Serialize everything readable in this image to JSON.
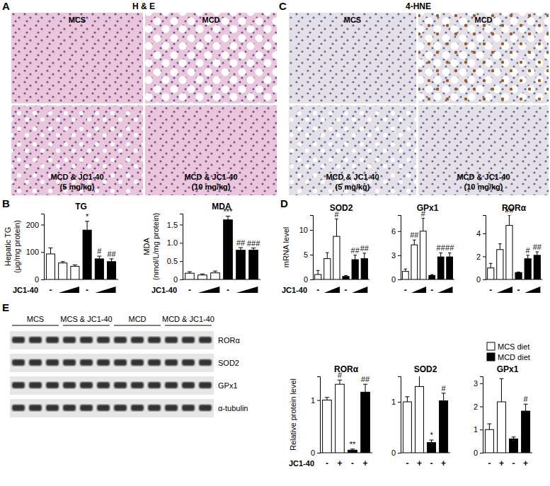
{
  "chart_data": [
    {
      "type": "bar",
      "title": "TG",
      "y_label": [
        "Hepatic TG",
        "(μg/mg protein)"
      ],
      "x_label": "JC1-40",
      "categories": [
        "-",
        null,
        null,
        "-",
        null,
        null
      ],
      "values": [
        93,
        60,
        48,
        180,
        75,
        65
      ],
      "errors": [
        22,
        5,
        5,
        32,
        10,
        10
      ],
      "colors": [
        "#ffffff",
        "#ffffff",
        "#ffffff",
        "#000000",
        "#000000",
        "#000000"
      ],
      "ylim": [
        0,
        240
      ],
      "yticks": [
        0,
        100,
        200
      ],
      "annotations": [
        {
          "index": 3,
          "text": "*"
        },
        {
          "index": 4,
          "text": "#"
        },
        {
          "index": 5,
          "text": "##"
        }
      ]
    },
    {
      "type": "bar",
      "title": "MDA",
      "y_label": [
        "MDA",
        "(nmol/L/mg protein)"
      ],
      "x_label": "JC1-40",
      "categories": [
        "-",
        null,
        null,
        "-",
        null,
        null
      ],
      "values": [
        0.17,
        0.12,
        0.18,
        1.63,
        0.8,
        0.8
      ],
      "errors": [
        0.04,
        0.03,
        0.05,
        0.1,
        0.07,
        0.06
      ],
      "colors": [
        "#ffffff",
        "#ffffff",
        "#ffffff",
        "#000000",
        "#000000",
        "#000000"
      ],
      "ylim": [
        0,
        1.8
      ],
      "yticks": [
        0,
        0.5,
        {
          "value": 1,
          "label": "1.0"
        },
        1.5
      ],
      "annotations": [
        {
          "index": 3,
          "text": "***"
        },
        {
          "index": 4,
          "text": "##"
        },
        {
          "index": 5,
          "text": "###"
        }
      ]
    },
    {
      "type": "bar",
      "title": "SOD2",
      "y_label": [
        "mRNA level"
      ],
      "x_label": "JC1-40",
      "categories": [
        "-",
        null,
        null,
        "-",
        null,
        null
      ],
      "values": [
        1.0,
        4.2,
        8.7,
        0.6,
        4.0,
        4.2
      ],
      "errors": [
        0.8,
        1.2,
        3.5,
        0.2,
        0.9,
        1.1
      ],
      "colors": [
        "#ffffff",
        "#ffffff",
        "#ffffff",
        "#000000",
        "#000000",
        "#000000"
      ],
      "ylim": [
        0,
        13
      ],
      "yticks": [
        0,
        5,
        10
      ],
      "annotations": [
        {
          "index": 2,
          "text": "#"
        },
        {
          "index": 4,
          "text": "##"
        },
        {
          "index": 5,
          "text": "##"
        }
      ]
    },
    {
      "type": "bar",
      "title": "GPx1",
      "categories": [
        "-",
        null,
        null,
        "-",
        null,
        null
      ],
      "values": [
        1.0,
        4.3,
        6.0,
        0.5,
        2.8,
        2.8
      ],
      "errors": [
        0.3,
        0.6,
        1.6,
        0.1,
        0.5,
        0.5
      ],
      "colors": [
        "#ffffff",
        "#ffffff",
        "#ffffff",
        "#000000",
        "#000000",
        "#000000"
      ],
      "ylim": [
        0,
        8
      ],
      "yticks": [
        0,
        3,
        6
      ],
      "annotations": [
        {
          "index": 1,
          "text": "##"
        },
        {
          "index": 2,
          "text": "#"
        },
        {
          "index": 4,
          "text": "##"
        },
        {
          "index": 5,
          "text": "##"
        }
      ]
    },
    {
      "type": "bar",
      "title": "RORα",
      "categories": [
        "-",
        null,
        null,
        "-",
        null,
        null
      ],
      "values": [
        1.0,
        2.6,
        4.7,
        0.6,
        1.8,
        2.1
      ],
      "errors": [
        0.4,
        0.5,
        0.9,
        0.05,
        0.3,
        0.3
      ],
      "colors": [
        "#ffffff",
        "#ffffff",
        "#ffffff",
        "#000000",
        "#000000",
        "#000000"
      ],
      "ylim": [
        0,
        5.6
      ],
      "yticks": [
        0,
        2,
        4
      ],
      "annotations": [
        {
          "index": 2,
          "text": "##"
        },
        {
          "index": 4,
          "text": "#"
        },
        {
          "index": 5,
          "text": "##"
        }
      ]
    },
    {
      "type": "bar",
      "title": "RORα",
      "y_label": [
        "Relative protein level"
      ],
      "x_label": "JC1-40",
      "categories": [
        "-",
        "+",
        "-",
        "+"
      ],
      "values": [
        1.0,
        1.3,
        0.05,
        1.15
      ],
      "errors": [
        0.05,
        0.08,
        0.02,
        0.15
      ],
      "colors": [
        "#ffffff",
        "#ffffff",
        "#000000",
        "#000000"
      ],
      "ylim": [
        0,
        1.45
      ],
      "yticks": [
        0,
        1
      ],
      "annotations": [
        {
          "index": 1,
          "text": "#"
        },
        {
          "index": 2,
          "text": "**"
        },
        {
          "index": 3,
          "text": "##"
        }
      ]
    },
    {
      "type": "bar",
      "title": "SOD2",
      "categories": [
        "-",
        "+",
        "-",
        "+"
      ],
      "values": [
        1.0,
        1.3,
        0.2,
        1.02
      ],
      "errors": [
        0.1,
        0.3,
        0.05,
        0.15
      ],
      "colors": [
        "#ffffff",
        "#ffffff",
        "#000000",
        "#000000"
      ],
      "ylim": [
        0,
        1.5
      ],
      "yticks": [
        0,
        1
      ],
      "annotations": [
        {
          "index": 2,
          "text": "*"
        },
        {
          "index": 3,
          "text": "#"
        }
      ]
    },
    {
      "type": "bar",
      "title": "GPx1",
      "categories": [
        "-",
        "+",
        "-",
        "+"
      ],
      "values": [
        1.0,
        2.2,
        0.6,
        1.8
      ],
      "errors": [
        0.25,
        1.0,
        0.08,
        0.3
      ],
      "colors": [
        "#ffffff",
        "#ffffff",
        "#000000",
        "#000000"
      ],
      "ylim": [
        0,
        3.3
      ],
      "yticks": [
        0,
        1,
        2,
        3
      ],
      "annotations": [
        {
          "index": 3,
          "text": "#"
        }
      ]
    }
  ],
  "panel_labels": [
    "A",
    "B",
    "C",
    "D",
    "E"
  ],
  "images": [
    {
      "title": "H & E",
      "panels": [
        {
          "caption": [
            "MCS"
          ]
        },
        {
          "caption": [
            "MCD"
          ]
        },
        {
          "caption": [
            "MCD & JC1-40",
            "(5 mg/kg)"
          ]
        },
        {
          "caption": [
            "MCD & JC1-40",
            "(10 mg/kg)"
          ]
        }
      ]
    },
    {
      "title": "4-HNE",
      "panels": [
        {
          "caption": [
            "MCS"
          ]
        },
        {
          "caption": [
            "MCD"
          ]
        },
        {
          "caption": [
            "MCD & JC1-40",
            "(5 mg/kg)"
          ]
        },
        {
          "caption": [
            "MCD & JC1-40",
            "(10 mg/kg)"
          ]
        }
      ]
    }
  ],
  "blot": {
    "groups": [
      "MCS",
      "MCS & JC1-40",
      "MCD",
      "MCD & JC1-40"
    ],
    "rows": [
      "RORα",
      "SOD2",
      "GPx1",
      "α-tubulin"
    ]
  },
  "legend": [
    {
      "name": "MCS diet",
      "color": "#ffffff"
    },
    {
      "name": "MCD diet",
      "color": "#000000"
    }
  ]
}
